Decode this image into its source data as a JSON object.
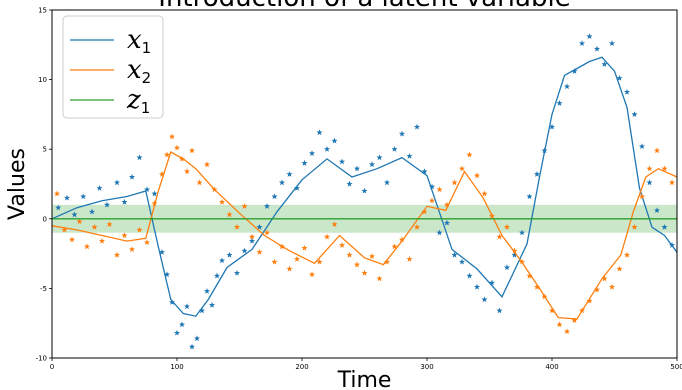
{
  "chart_data": {
    "type": "line",
    "title": "Introduction of a latent variable",
    "xlabel": "Time",
    "ylabel": "Values",
    "xlim": [
      0,
      500
    ],
    "ylim": [
      -10,
      15
    ],
    "x_ticks": [
      "0",
      "100",
      "200",
      "300",
      "400",
      "500"
    ],
    "y_ticks": [
      "-10",
      "-5",
      "0",
      "5",
      "10",
      "15"
    ],
    "grid": false,
    "legend_position": "top-left",
    "band": {
      "series": "z_1",
      "lower": -1,
      "upper": 1,
      "color": "#2ca02c"
    },
    "series": [
      {
        "name": "x_1",
        "legend_base": "x",
        "legend_sub": "1",
        "color": "#1f77b4",
        "x": [
          0,
          20,
          40,
          60,
          75,
          85,
          95,
          105,
          115,
          125,
          140,
          160,
          180,
          200,
          220,
          240,
          260,
          280,
          300,
          320,
          340,
          360,
          380,
          390,
          400,
          410,
          420,
          430,
          440,
          450,
          460,
          470,
          480,
          490,
          500
        ],
        "y": [
          0,
          0.8,
          1.3,
          1.6,
          2.0,
          -2,
          -5.8,
          -6.8,
          -7.0,
          -5.8,
          -3.5,
          -2.2,
          0.5,
          2.8,
          4.3,
          3.0,
          3.6,
          4.4,
          3.1,
          -2.2,
          -3.6,
          -5.6,
          -1.8,
          3,
          7.5,
          10.3,
          10.8,
          11.3,
          11.6,
          10.6,
          8,
          2.2,
          -0.6,
          -1.2,
          -2.4
        ],
        "scatter": [
          [
            5,
            0.8
          ],
          [
            12,
            1.5
          ],
          [
            18,
            0.3
          ],
          [
            25,
            1.6
          ],
          [
            32,
            0.5
          ],
          [
            38,
            2.2
          ],
          [
            44,
            1.0
          ],
          [
            52,
            2.6
          ],
          [
            58,
            1.2
          ],
          [
            64,
            3.0
          ],
          [
            70,
            4.4
          ],
          [
            76,
            2.1
          ],
          [
            82,
            1.8
          ],
          [
            88,
            -2.4
          ],
          [
            92,
            -4.0
          ],
          [
            96,
            -6.0
          ],
          [
            100,
            -8.2
          ],
          [
            104,
            -7.6
          ],
          [
            108,
            -6.3
          ],
          [
            112,
            -9.2
          ],
          [
            116,
            -8.6
          ],
          [
            120,
            -6.6
          ],
          [
            124,
            -5.2
          ],
          [
            128,
            -6.2
          ],
          [
            132,
            -4.1
          ],
          [
            136,
            -3.0
          ],
          [
            142,
            -2.6
          ],
          [
            148,
            -3.9
          ],
          [
            154,
            -2.3
          ],
          [
            160,
            -1.6
          ],
          [
            166,
            -0.6
          ],
          [
            172,
            0.9
          ],
          [
            178,
            1.6
          ],
          [
            184,
            2.6
          ],
          [
            190,
            3.2
          ],
          [
            196,
            2.2
          ],
          [
            202,
            4.0
          ],
          [
            208,
            4.7
          ],
          [
            214,
            6.2
          ],
          [
            220,
            5.0
          ],
          [
            226,
            5.6
          ],
          [
            232,
            4.1
          ],
          [
            238,
            2.5
          ],
          [
            244,
            3.6
          ],
          [
            250,
            2.0
          ],
          [
            256,
            3.9
          ],
          [
            262,
            4.4
          ],
          [
            268,
            2.6
          ],
          [
            274,
            5.0
          ],
          [
            280,
            6.1
          ],
          [
            286,
            4.5
          ],
          [
            292,
            6.6
          ],
          [
            298,
            3.4
          ],
          [
            304,
            2.3
          ],
          [
            310,
            -1.0
          ],
          [
            316,
            -0.3
          ],
          [
            322,
            -2.6
          ],
          [
            328,
            -3.1
          ],
          [
            334,
            -4.1
          ],
          [
            340,
            -4.9
          ],
          [
            346,
            -5.8
          ],
          [
            352,
            -4.6
          ],
          [
            358,
            -6.6
          ],
          [
            364,
            -3.5
          ],
          [
            370,
            -2.6
          ],
          [
            376,
            -1.0
          ],
          [
            382,
            1.6
          ],
          [
            388,
            3.2
          ],
          [
            394,
            4.9
          ],
          [
            400,
            6.6
          ],
          [
            406,
            8.3
          ],
          [
            412,
            9.5
          ],
          [
            418,
            10.6
          ],
          [
            424,
            12.6
          ],
          [
            430,
            13.1
          ],
          [
            436,
            12.2
          ],
          [
            442,
            11.1
          ],
          [
            448,
            12.6
          ],
          [
            454,
            10.1
          ],
          [
            460,
            9.1
          ],
          [
            466,
            7.5
          ],
          [
            472,
            5.2
          ],
          [
            478,
            2.6
          ],
          [
            484,
            0.6
          ],
          [
            490,
            -0.6
          ],
          [
            496,
            -1.9
          ]
        ]
      },
      {
        "name": "x_2",
        "legend_base": "x",
        "legend_sub": "2",
        "color": "#ff7f0e",
        "x": [
          0,
          20,
          40,
          60,
          75,
          85,
          95,
          105,
          115,
          130,
          150,
          170,
          190,
          210,
          230,
          250,
          265,
          280,
          300,
          315,
          330,
          345,
          360,
          375,
          390,
          405,
          420,
          440,
          455,
          465,
          475,
          485,
          500
        ],
        "y": [
          -0.5,
          -0.8,
          -1.2,
          -1.6,
          -1.4,
          2,
          4.8,
          4.3,
          3.6,
          2.1,
          0.4,
          -1.2,
          -2.3,
          -3.2,
          -1.2,
          -2.8,
          -3.3,
          -1.6,
          0.9,
          0.6,
          3.4,
          1.5,
          -1.2,
          -3.0,
          -5.0,
          -7.1,
          -7.2,
          -4.3,
          -2.6,
          0.5,
          3.0,
          3.6,
          3.0
        ],
        "scatter": [
          [
            4,
            1.8
          ],
          [
            10,
            -0.8
          ],
          [
            16,
            -1.5
          ],
          [
            22,
            -0.2
          ],
          [
            28,
            -2.0
          ],
          [
            34,
            -0.6
          ],
          [
            40,
            -1.6
          ],
          [
            46,
            -0.4
          ],
          [
            52,
            -2.6
          ],
          [
            58,
            -1.2
          ],
          [
            64,
            -2.2
          ],
          [
            70,
            -0.8
          ],
          [
            76,
            -1.7
          ],
          [
            82,
            1.1
          ],
          [
            88,
            3.2
          ],
          [
            92,
            4.6
          ],
          [
            96,
            5.9
          ],
          [
            100,
            5.1
          ],
          [
            104,
            4.3
          ],
          [
            108,
            3.4
          ],
          [
            112,
            4.9
          ],
          [
            118,
            2.6
          ],
          [
            124,
            3.9
          ],
          [
            130,
            2.1
          ],
          [
            136,
            1.2
          ],
          [
            142,
            0.3
          ],
          [
            148,
            -0.6
          ],
          [
            154,
            0.9
          ],
          [
            160,
            -1.3
          ],
          [
            166,
            -2.4
          ],
          [
            172,
            -1.0
          ],
          [
            178,
            -3.1
          ],
          [
            184,
            -2.0
          ],
          [
            190,
            -3.6
          ],
          [
            196,
            -2.9
          ],
          [
            202,
            -2.1
          ],
          [
            208,
            -4.0
          ],
          [
            214,
            -3.1
          ],
          [
            220,
            -1.3
          ],
          [
            226,
            -0.4
          ],
          [
            232,
            -1.9
          ],
          [
            238,
            -2.6
          ],
          [
            244,
            -3.3
          ],
          [
            250,
            -3.9
          ],
          [
            256,
            -2.7
          ],
          [
            262,
            -4.3
          ],
          [
            268,
            -3.1
          ],
          [
            274,
            -2.0
          ],
          [
            280,
            -1.5
          ],
          [
            286,
            -2.9
          ],
          [
            292,
            -0.6
          ],
          [
            298,
            0.5
          ],
          [
            304,
            1.3
          ],
          [
            310,
            2.1
          ],
          [
            316,
            1.0
          ],
          [
            322,
            2.6
          ],
          [
            328,
            3.6
          ],
          [
            334,
            4.6
          ],
          [
            340,
            3.1
          ],
          [
            346,
            1.8
          ],
          [
            352,
            0.2
          ],
          [
            358,
            -1.3
          ],
          [
            364,
            -0.6
          ],
          [
            370,
            -2.3
          ],
          [
            376,
            -3.1
          ],
          [
            382,
            -4.1
          ],
          [
            388,
            -4.9
          ],
          [
            394,
            -5.6
          ],
          [
            400,
            -6.6
          ],
          [
            406,
            -7.6
          ],
          [
            412,
            -8.1
          ],
          [
            418,
            -7.3
          ],
          [
            424,
            -6.6
          ],
          [
            430,
            -5.9
          ],
          [
            436,
            -5.1
          ],
          [
            442,
            -4.3
          ],
          [
            448,
            -4.9
          ],
          [
            454,
            -3.6
          ],
          [
            460,
            -2.6
          ],
          [
            466,
            -0.6
          ],
          [
            472,
            1.6
          ],
          [
            478,
            3.6
          ],
          [
            484,
            4.9
          ],
          [
            490,
            3.6
          ],
          [
            496,
            2.6
          ]
        ]
      },
      {
        "name": "z_1",
        "legend_base": "z",
        "legend_sub": "1",
        "color": "#2ca02c",
        "x": [
          0,
          500
        ],
        "y": [
          0,
          0
        ]
      }
    ]
  }
}
